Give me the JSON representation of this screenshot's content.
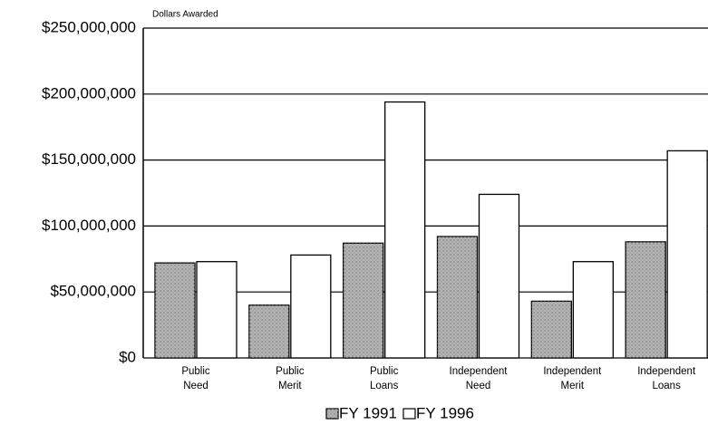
{
  "chart_data": {
    "type": "bar",
    "y_axis_label": "Dollars Awarded",
    "categories": [
      [
        "Public",
        "Need"
      ],
      [
        "Public",
        "Merit"
      ],
      [
        "Public",
        "Loans"
      ],
      [
        "Independent",
        "Need"
      ],
      [
        "Independent",
        "Merit"
      ],
      [
        "Independent",
        "Loans"
      ]
    ],
    "series": [
      {
        "name": "FY 1991",
        "color": "#b4b4b4",
        "values": [
          72000000,
          40000000,
          87000000,
          92000000,
          43000000,
          88000000
        ]
      },
      {
        "name": "FY 1996",
        "color": "#ffffff",
        "values": [
          73000000,
          78000000,
          194000000,
          124000000,
          73000000,
          157000000
        ]
      }
    ],
    "ylim": [
      0,
      250000000
    ],
    "yticks": [
      {
        "value": 0,
        "label": "$0"
      },
      {
        "value": 50000000,
        "label": "$50,000,000"
      },
      {
        "value": 100000000,
        "label": "$100,000,000"
      },
      {
        "value": 150000000,
        "label": "$150,000,000"
      },
      {
        "value": 200000000,
        "label": "$200,000,000"
      },
      {
        "value": 250000000,
        "label": "$250,000,000"
      }
    ],
    "grid": true,
    "legend": "bottom"
  }
}
